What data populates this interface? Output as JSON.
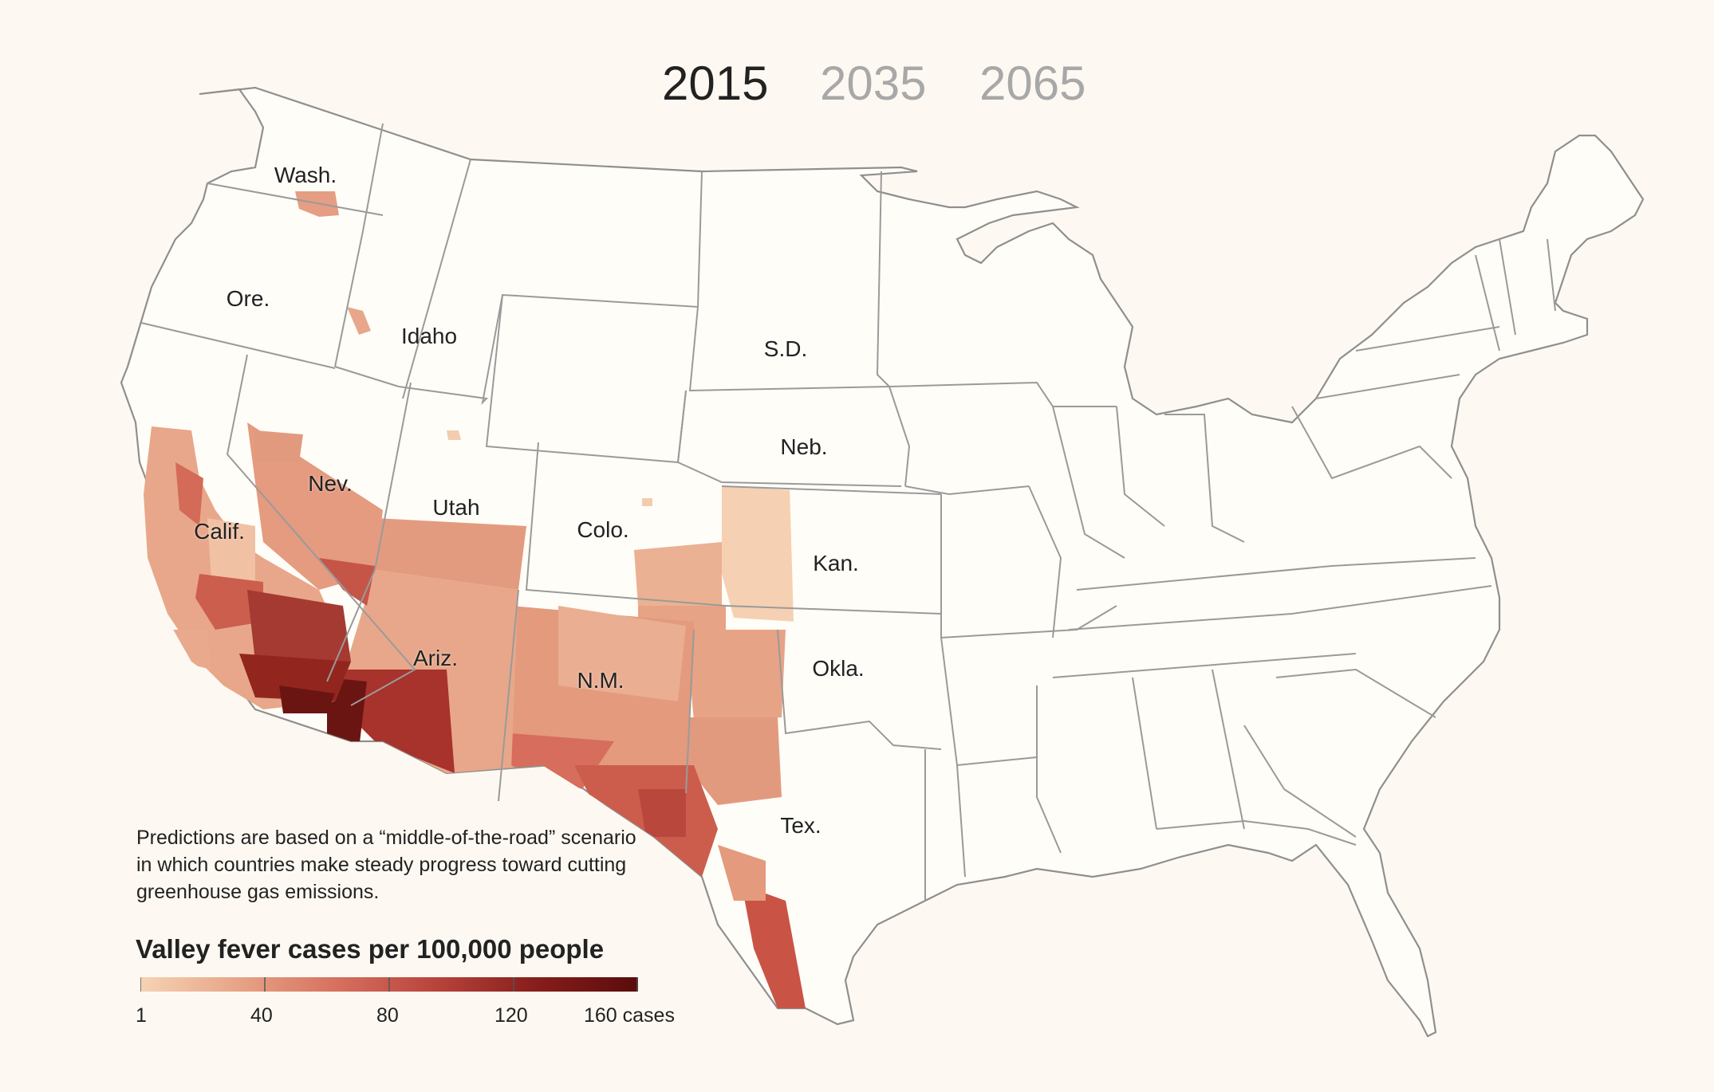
{
  "years": {
    "y2015": "2015",
    "y2035": "2035",
    "y2065": "2065",
    "selected": "2015"
  },
  "states": {
    "wash": "Wash.",
    "ore": "Ore.",
    "idaho": "Idaho",
    "sd": "S.D.",
    "neb": "Neb.",
    "nev": "Nev.",
    "utah": "Utah",
    "calif": "Calif.",
    "colo": "Colo.",
    "kan": "Kan.",
    "ariz": "Ariz.",
    "nm": "N.M.",
    "okla": "Okla.",
    "tex": "Tex."
  },
  "note": "Predictions are based on a “middle-of-the-road” scenario in which countries make steady progress toward cutting greenhouse gas emissions.",
  "legend": {
    "title": "Valley fever cases per 100,000 people",
    "ticks": [
      "1",
      "40",
      "80",
      "120",
      "160 cases"
    ],
    "colors": [
      "#f6d3b4",
      "#e7a386",
      "#d56f5e",
      "#b7423a",
      "#851d1b",
      "#5a0c0c"
    ]
  },
  "colors": {
    "background": "#fdf9f2",
    "state_border": "#9a9a9a",
    "land": "#fffdf8"
  }
}
